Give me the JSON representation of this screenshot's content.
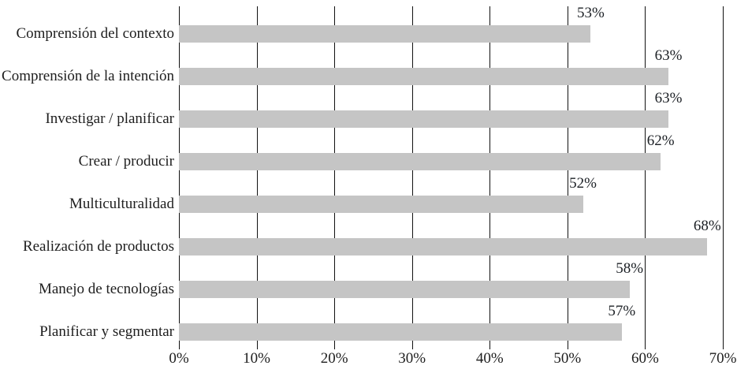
{
  "chart_data": {
    "type": "bar",
    "orientation": "horizontal",
    "title": "",
    "xlabel": "",
    "ylabel": "",
    "categories": [
      "Comprensión del contexto",
      "Comprensión de la intención",
      "Investigar / planificar",
      "Crear / producir",
      "Multiculturalidad",
      "Realización de productos",
      "Manejo de tecnologías",
      "Planificar y segmentar"
    ],
    "values": [
      53,
      63,
      63,
      62,
      52,
      68,
      58,
      57
    ],
    "value_labels": [
      "53%",
      "63%",
      "63%",
      "62%",
      "52%",
      "68%",
      "58%",
      "57%"
    ],
    "xlim": [
      0,
      70
    ],
    "x_ticks": [
      "0%",
      "10%",
      "20%",
      "30%",
      "40%",
      "50%",
      "60%",
      "70%"
    ],
    "x_tick_values": [
      0,
      10,
      20,
      30,
      40,
      50,
      60,
      70
    ],
    "grid": "vertical gridlines at every 10%, ticks below axis",
    "legend": "none",
    "colors": {
      "bar_fill": "#c5c5c5",
      "gridline": "#111111",
      "text": "#1e1e1e",
      "background": "#ffffff"
    }
  }
}
